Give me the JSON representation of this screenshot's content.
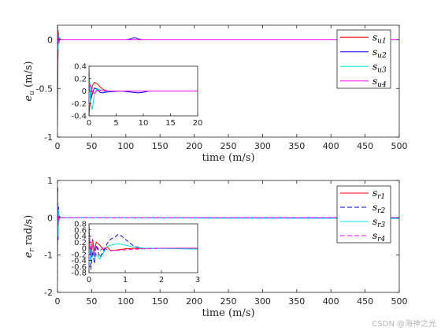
{
  "watermark": "CSDN @海神之光",
  "colors": {
    "c1": "#ff0000",
    "c2": "#0000ff",
    "c3": "#00e5ee",
    "c4": "#ff00ff",
    "axis": "#262626"
  },
  "chart_data": [
    {
      "type": "line",
      "title": "",
      "xlabel": "time (m/s)",
      "ylabel": {
        "base": "e",
        "sub": "u",
        "rest": " (m/s)"
      },
      "xlim": [
        0,
        500
      ],
      "ylim": [
        -1,
        0.15
      ],
      "xticks": [
        "0",
        "50",
        "100",
        "150",
        "200",
        "250",
        "300",
        "350",
        "400",
        "450",
        "500"
      ],
      "yticks": [
        "-1",
        "-0.5",
        "0"
      ],
      "legend_position": "top-right",
      "series": [
        {
          "name": "s_u1",
          "leg": [
            "s",
            "u1"
          ],
          "style": "solid",
          "color": "#ff0000",
          "x": [
            0,
            0.5,
            1,
            1.5,
            2,
            3,
            5,
            10,
            100,
            500
          ],
          "y": [
            -0.9,
            -0.5,
            0.1,
            0.05,
            -0.03,
            0.02,
            0,
            0,
            0,
            0
          ]
        },
        {
          "name": "s_u2",
          "leg": [
            "s",
            "u2"
          ],
          "style": "solid",
          "color": "#0000ff",
          "x": [
            0,
            0.5,
            1,
            1.5,
            2,
            3,
            5,
            100,
            105,
            110,
            115,
            120,
            125,
            500
          ],
          "y": [
            0.1,
            -0.2,
            -0.05,
            0.03,
            -0.03,
            0.01,
            0,
            0,
            0.005,
            0.02,
            0.02,
            0.005,
            0,
            0
          ]
        },
        {
          "name": "s_u3",
          "leg": [
            "s",
            "u3"
          ],
          "style": "solid",
          "color": "#00e5ee",
          "x": [
            0,
            0.5,
            1,
            1.5,
            2,
            3,
            5,
            500
          ],
          "y": [
            -0.3,
            0.15,
            -0.1,
            0.04,
            -0.02,
            0.01,
            0,
            0
          ]
        },
        {
          "name": "s_u4",
          "leg": [
            "s",
            "u4"
          ],
          "style": "solid",
          "color": "#ff00ff",
          "x": [
            0,
            0.5,
            1,
            1.5,
            2,
            3,
            5,
            500
          ],
          "y": [
            -0.05,
            0.1,
            -0.05,
            0.02,
            -0.01,
            0,
            0,
            0
          ]
        }
      ],
      "inset": {
        "xlim": [
          0,
          20
        ],
        "ylim": [
          -0.4,
          0.4
        ],
        "xticks": [
          "0",
          "5",
          "10",
          "15",
          "20"
        ],
        "yticks": [
          "-0.4",
          "-0.2",
          "0",
          "0.2",
          "0.4"
        ],
        "series": [
          {
            "color": "#ff0000",
            "style": "solid",
            "x": [
              0,
              0.3,
              0.6,
              1,
              1.5,
              2,
              2.5,
              3,
              4,
              5,
              6,
              20
            ],
            "y": [
              -0.38,
              -0.1,
              0.08,
              0.14,
              0.12,
              0.07,
              0.03,
              0.01,
              -0.01,
              0,
              0,
              0
            ]
          },
          {
            "color": "#0000ff",
            "style": "solid",
            "x": [
              0,
              0.3,
              0.6,
              1,
              1.5,
              2,
              2.5,
              3,
              4,
              6,
              8,
              9,
              10,
              11,
              20
            ],
            "y": [
              0.3,
              -0.15,
              -0.05,
              0.05,
              0.03,
              -0.02,
              -0.03,
              -0.02,
              -0.01,
              0,
              -0.02,
              -0.03,
              -0.02,
              0,
              0
            ]
          },
          {
            "color": "#00e5ee",
            "style": "solid",
            "x": [
              0,
              0.3,
              0.6,
              1,
              1.5,
              2,
              3,
              4,
              5,
              20
            ],
            "y": [
              0.36,
              -0.2,
              -0.3,
              -0.05,
              0.04,
              0.02,
              -0.01,
              0,
              0,
              0
            ]
          },
          {
            "color": "#ff00ff",
            "style": "solid",
            "x": [
              0,
              0.3,
              0.6,
              1,
              1.5,
              2,
              3,
              5,
              20
            ],
            "y": [
              0.05,
              0.1,
              -0.02,
              -0.04,
              0.01,
              0.01,
              0,
              0,
              0
            ]
          }
        ]
      }
    },
    {
      "type": "line",
      "title": "",
      "xlabel": "time (m/s)",
      "ylabel": {
        "base": "e",
        "sub": "r",
        "rest": " rad/s)"
      },
      "xlim": [
        0,
        500
      ],
      "ylim": [
        -2,
        1
      ],
      "xticks": [
        "0",
        "50",
        "100",
        "150",
        "200",
        "250",
        "300",
        "350",
        "400",
        "450",
        "500"
      ],
      "yticks": [
        "-2",
        "-1",
        "0",
        "1"
      ],
      "legend_position": "top-right",
      "series": [
        {
          "name": "s_r1",
          "leg": [
            "s",
            "r1"
          ],
          "style": "solid",
          "color": "#ff0000",
          "x": [
            0,
            0.5,
            1,
            1.5,
            2,
            3,
            5,
            500
          ],
          "y": [
            -1.0,
            0.6,
            -0.3,
            0.1,
            -0.05,
            0.02,
            0,
            0
          ]
        },
        {
          "name": "s_r2",
          "leg": [
            "s",
            "r2"
          ],
          "style": "dashed",
          "color": "#0000ff",
          "x": [
            0,
            0.5,
            1,
            1.5,
            2,
            3,
            5,
            500
          ],
          "y": [
            -1.7,
            0.8,
            -0.6,
            0.3,
            -0.1,
            0.04,
            0,
            0
          ]
        },
        {
          "name": "s_r3",
          "leg": [
            "s",
            "r3"
          ],
          "style": "solid",
          "color": "#00e5ee",
          "x": [
            0,
            0.5,
            1,
            1.5,
            2,
            3,
            5,
            200,
            500
          ],
          "y": [
            -1.4,
            0.7,
            -0.5,
            0.2,
            -0.08,
            0.02,
            0,
            -0.01,
            -0.02
          ]
        },
        {
          "name": "s_r4",
          "leg": [
            "s",
            "r4"
          ],
          "style": "dashed",
          "color": "#ff00ff",
          "x": [
            0,
            0.5,
            1,
            1.5,
            2,
            3,
            5,
            500
          ],
          "y": [
            -0.6,
            0.4,
            -0.2,
            0.08,
            -0.03,
            0.01,
            0,
            0
          ]
        }
      ],
      "inset": {
        "xlim": [
          0,
          3
        ],
        "ylim": [
          -0.8,
          0.8
        ],
        "xticks": [
          "0",
          "1",
          "2",
          "3"
        ],
        "yticks": [
          "-0.8",
          "-0.6",
          "-0.4",
          "-0.2",
          "0",
          "0.2",
          "0.4",
          "0.6",
          "0.8"
        ],
        "series": [
          {
            "color": "#ff0000",
            "style": "solid",
            "x": [
              0,
              0.05,
              0.1,
              0.15,
              0.2,
              0.3,
              0.4,
              0.5,
              0.6,
              0.8,
              1.0,
              1.3,
              1.6,
              2,
              3
            ],
            "y": [
              0.6,
              -0.2,
              0.3,
              -0.1,
              0.2,
              0.1,
              -0.05,
              0.05,
              -0.08,
              -0.05,
              -0.02,
              0,
              -0.01,
              0,
              0
            ]
          },
          {
            "color": "#0000ff",
            "style": "dashed",
            "x": [
              0,
              0.05,
              0.1,
              0.15,
              0.2,
              0.3,
              0.4,
              0.5,
              0.6,
              0.7,
              0.8,
              0.9,
              1.0,
              1.1,
              1.2,
              1.3,
              1.5,
              2,
              3
            ],
            "y": [
              0.75,
              -0.7,
              -0.1,
              -0.5,
              0.1,
              -0.3,
              -0.1,
              0.15,
              0.3,
              0.35,
              0.45,
              0.4,
              0.3,
              0.2,
              0.1,
              0.05,
              0,
              0,
              0
            ]
          },
          {
            "color": "#00e5ee",
            "style": "solid",
            "x": [
              0,
              0.05,
              0.1,
              0.15,
              0.2,
              0.3,
              0.4,
              0.5,
              0.6,
              0.8,
              1.0,
              1.2,
              1.5,
              2,
              2.5,
              3
            ],
            "y": [
              0.6,
              -0.5,
              0.2,
              -0.4,
              -0.2,
              -0.35,
              -0.15,
              0.05,
              0.1,
              0.15,
              0.1,
              0.05,
              0,
              -0.01,
              -0.02,
              -0.03
            ]
          },
          {
            "color": "#ff00ff",
            "style": "dashed",
            "x": [
              0,
              0.05,
              0.1,
              0.15,
              0.2,
              0.3,
              0.4,
              0.5,
              0.7,
              1.0,
              1.5,
              2,
              3
            ],
            "y": [
              0.7,
              -0.3,
              0.15,
              -0.25,
              0.1,
              -0.1,
              0.05,
              -0.05,
              -0.08,
              -0.05,
              -0.02,
              0,
              0
            ]
          }
        ]
      }
    }
  ]
}
